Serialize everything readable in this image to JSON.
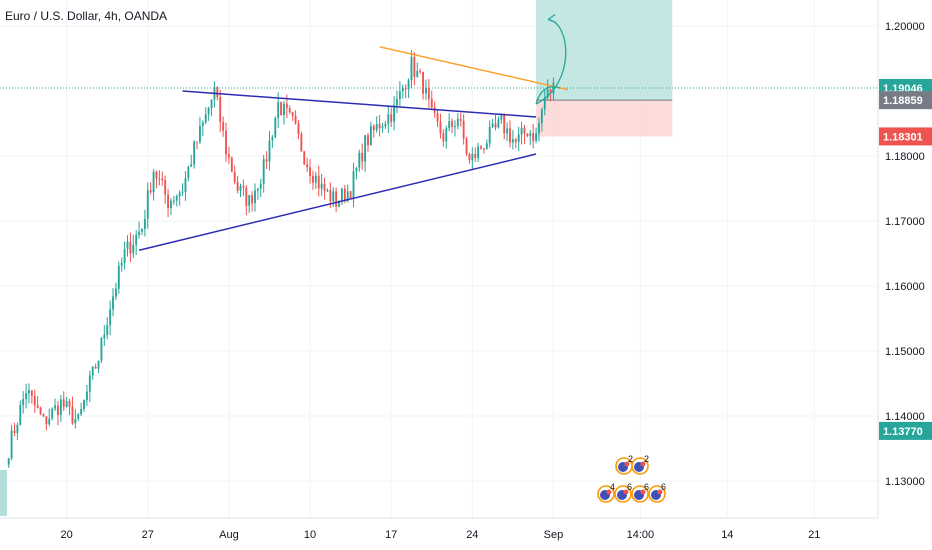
{
  "header": {
    "title": "Euro / U.S. Dollar, 4h, OANDA"
  },
  "colors": {
    "up": "#26a69a",
    "down": "#ef5350",
    "trendline": "#2c2cb4",
    "resistance": "#ff9f2e",
    "target_zone": "#b2dfdb",
    "stop_zone": "#fcd5d5",
    "current_price_line": "#26a69a",
    "grid": "#f0f3fa"
  },
  "price_tags": [
    {
      "label": "1.19046",
      "color": "#26a69a"
    },
    {
      "label": "1.18859",
      "color": "#787b86"
    },
    {
      "label": "1.18301",
      "color": "#ef5350"
    },
    {
      "label": "1.13770",
      "color": "#26a69a"
    }
  ],
  "events": {
    "row1": [
      "2",
      "2"
    ],
    "row2": [
      "4",
      "6",
      "6",
      "6"
    ]
  },
  "chart_data": {
    "type": "candlestick",
    "title": "Euro / U.S. Dollar, 4h, OANDA",
    "y_ticks": [
      1.13,
      1.14,
      1.15,
      1.16,
      1.17,
      1.18,
      1.2
    ],
    "y_tick_labels": [
      "1.13000",
      "1.14000",
      "1.15000",
      "1.16000",
      "1.17000",
      "1.18000",
      "1.20000"
    ],
    "ylim": [
      1.1243,
      1.204
    ],
    "x_tick_labels": [
      "20",
      "27",
      "Aug",
      "10",
      "17",
      "24",
      "Sep",
      "14:00",
      "14",
      "21"
    ],
    "x_ticks_index": [
      20,
      48,
      76,
      104,
      132,
      160,
      188,
      218,
      248,
      278
    ],
    "xlim": [
      -3,
      300
    ],
    "price_path": [
      [
        0,
        1.135
      ],
      [
        6,
        1.144
      ],
      [
        12,
        1.139
      ],
      [
        18,
        1.142
      ],
      [
        24,
        1.139
      ],
      [
        28,
        1.145
      ],
      [
        31,
        1.149
      ],
      [
        35,
        1.157
      ],
      [
        40,
        1.165
      ],
      [
        46,
        1.169
      ],
      [
        50,
        1.178
      ],
      [
        55,
        1.173
      ],
      [
        60,
        1.175
      ],
      [
        64,
        1.181
      ],
      [
        68,
        1.186
      ],
      [
        71,
        1.19
      ],
      [
        75,
        1.181
      ],
      [
        79,
        1.175
      ],
      [
        83,
        1.173
      ],
      [
        88,
        1.178
      ],
      [
        93,
        1.188
      ],
      [
        98,
        1.185
      ],
      [
        103,
        1.179
      ],
      [
        108,
        1.175
      ],
      [
        113,
        1.173
      ],
      [
        118,
        1.175
      ],
      [
        123,
        1.182
      ],
      [
        128,
        1.185
      ],
      [
        133,
        1.187
      ],
      [
        139,
        1.194
      ],
      [
        143,
        1.191
      ],
      [
        146,
        1.186
      ],
      [
        150,
        1.183
      ],
      [
        155,
        1.186
      ],
      [
        159,
        1.179
      ],
      [
        164,
        1.182
      ],
      [
        170,
        1.185
      ],
      [
        175,
        1.182
      ],
      [
        179,
        1.184
      ],
      [
        182,
        1.183
      ],
      [
        185,
        1.189
      ],
      [
        188,
        1.1905
      ]
    ],
    "support_line": {
      "from": [
        45,
        1.1655
      ],
      "to": [
        182,
        1.1803
      ]
    },
    "triangle_top_line": {
      "from": [
        60,
        1.19
      ],
      "to": [
        182,
        1.186
      ]
    },
    "resistance_line": {
      "from": [
        128,
        1.1968
      ],
      "to": [
        193,
        1.1902
      ]
    },
    "current_price": 1.19046,
    "entry": 1.18859,
    "stop": 1.18301,
    "target_top": 1.204,
    "position_box_x": [
      182,
      229
    ]
  }
}
